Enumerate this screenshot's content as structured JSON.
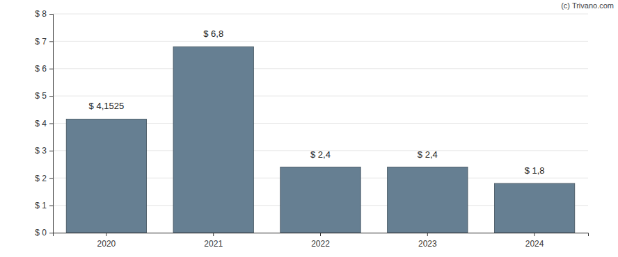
{
  "chart_data": {
    "type": "bar",
    "categories": [
      "2020",
      "2021",
      "2022",
      "2023",
      "2024"
    ],
    "values": [
      4.1525,
      6.8,
      2.4,
      2.4,
      1.8
    ],
    "value_labels": [
      "$ 4,1525",
      "$ 6,8",
      "$ 2,4",
      "$ 2,4",
      "$ 1,8"
    ],
    "data_labels": true,
    "color": "#667f92",
    "ylim": [
      0,
      8
    ],
    "yticks": [
      {
        "value": 0,
        "label": "$ 0"
      },
      {
        "value": 1,
        "label": "$ 1"
      },
      {
        "value": 2,
        "label": "$ 2"
      },
      {
        "value": 3,
        "label": "$ 3"
      },
      {
        "value": 4,
        "label": "$ 4"
      },
      {
        "value": 5,
        "label": "$ 5"
      },
      {
        "value": 6,
        "label": "$ 6"
      },
      {
        "value": 7,
        "label": "$ 7"
      },
      {
        "value": 8,
        "label": "$ 8"
      }
    ],
    "grid": true,
    "annotations": [
      "(c) Trivano.com"
    ]
  }
}
